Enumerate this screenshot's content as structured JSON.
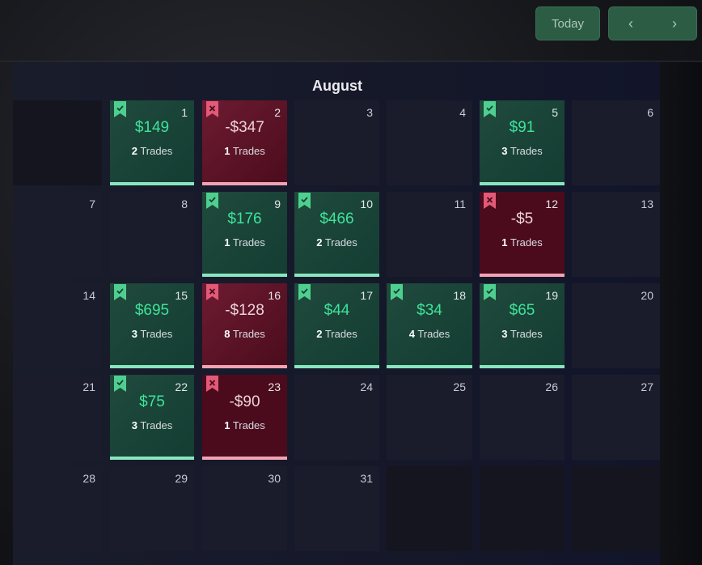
{
  "header": {
    "today_label": "Today",
    "prev_label": "‹",
    "next_label": "›"
  },
  "calendar": {
    "month": "August",
    "days": [
      {
        "day": "1",
        "pnl": "$149",
        "trades_count": "2",
        "trades_label": "Trades",
        "result": "win"
      },
      {
        "day": "2",
        "pnl": "-$347",
        "trades_count": "1",
        "trades_label": "Trades",
        "result": "loss"
      },
      {
        "day": "3"
      },
      {
        "day": "4"
      },
      {
        "day": "5",
        "pnl": "$91",
        "trades_count": "3",
        "trades_label": "Trades",
        "result": "win"
      },
      {
        "day": "6"
      },
      {
        "day": "7"
      },
      {
        "day": "8"
      },
      {
        "day": "9",
        "pnl": "$176",
        "trades_count": "1",
        "trades_label": "Trades",
        "result": "win"
      },
      {
        "day": "10",
        "pnl": "$466",
        "trades_count": "2",
        "trades_label": "Trades",
        "result": "win"
      },
      {
        "day": "11"
      },
      {
        "day": "12",
        "pnl": "-$5",
        "trades_count": "1",
        "trades_label": "Trades",
        "result": "loss"
      },
      {
        "day": "13"
      },
      {
        "day": "14"
      },
      {
        "day": "15",
        "pnl": "$695",
        "trades_count": "3",
        "trades_label": "Trades",
        "result": "win"
      },
      {
        "day": "16",
        "pnl": "-$128",
        "trades_count": "8",
        "trades_label": "Trades",
        "result": "loss"
      },
      {
        "day": "17",
        "pnl": "$44",
        "trades_count": "2",
        "trades_label": "Trades",
        "result": "win"
      },
      {
        "day": "18",
        "pnl": "$34",
        "trades_count": "4",
        "trades_label": "Trades",
        "result": "win"
      },
      {
        "day": "19",
        "pnl": "$65",
        "trades_count": "3",
        "trades_label": "Trades",
        "result": "win"
      },
      {
        "day": "20"
      },
      {
        "day": "21"
      },
      {
        "day": "22",
        "pnl": "$75",
        "trades_count": "3",
        "trades_label": "Trades",
        "result": "win"
      },
      {
        "day": "23",
        "pnl": "-$90",
        "trades_count": "1",
        "trades_label": "Trades",
        "result": "loss"
      },
      {
        "day": "24"
      },
      {
        "day": "25"
      },
      {
        "day": "26"
      },
      {
        "day": "27"
      },
      {
        "day": "28"
      },
      {
        "day": "29"
      },
      {
        "day": "30"
      },
      {
        "day": "31"
      }
    ]
  },
  "colors": {
    "win_text": "#3ee39b",
    "win_bar": "#8ae5bf",
    "loss_bar": "#f0a3b3",
    "win_badge": "#4fcf8f",
    "loss_badge": "#e25a78"
  },
  "icons": {
    "win_badge": "bookmark-check-icon",
    "loss_badge": "bookmark-x-icon",
    "prev": "chevron-left-icon",
    "next": "chevron-right-icon"
  }
}
